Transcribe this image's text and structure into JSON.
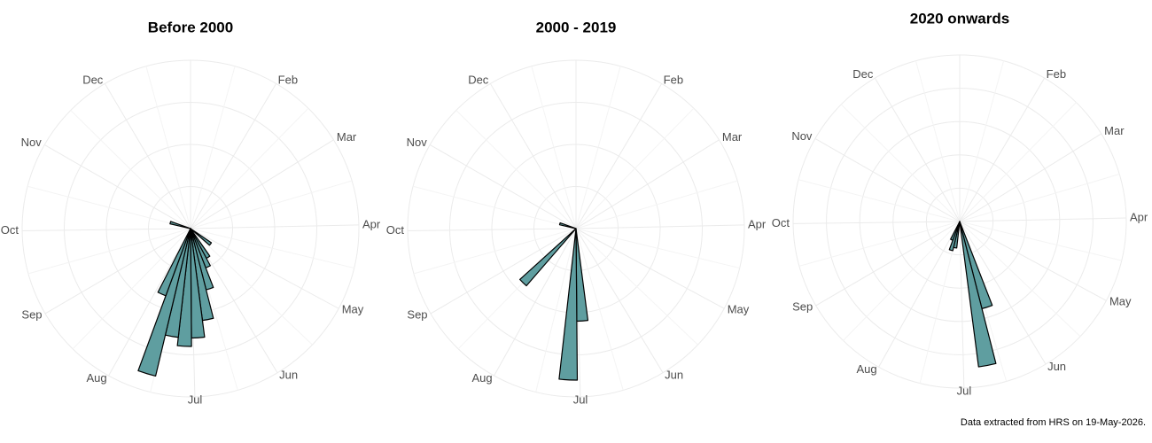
{
  "chart_data": [
    {
      "type": "polar_histogram",
      "title": "Before 2000",
      "color": "#5f9ea0",
      "bins": [
        119,
        126,
        133,
        140,
        147,
        154,
        161,
        168,
        175,
        182,
        189,
        196,
        203,
        210,
        217,
        224,
        231,
        238,
        245,
        252,
        259,
        266,
        273,
        280,
        287,
        294
      ],
      "counts": [
        0,
        6,
        0,
        0,
        8,
        10,
        15,
        22,
        26,
        28,
        26,
        36,
        17,
        0,
        0,
        0,
        0,
        0,
        0,
        0,
        0,
        0,
        0,
        0,
        5
      ],
      "xlim": [
        0,
        365
      ],
      "xticks": [
        {
          "value": 31,
          "label": "Feb"
        },
        {
          "value": 59,
          "label": "Mar"
        },
        {
          "value": 90,
          "label": "Apr"
        },
        {
          "value": 120,
          "label": "May"
        },
        {
          "value": 151,
          "label": "Jun"
        },
        {
          "value": 181,
          "label": "Jul"
        },
        {
          "value": 212,
          "label": "Aug"
        },
        {
          "value": 243,
          "label": "Sep"
        },
        {
          "value": 273,
          "label": "Oct"
        },
        {
          "value": 304,
          "label": "Nov"
        },
        {
          "value": 334,
          "label": "Dec"
        }
      ],
      "ylim": [
        0,
        40
      ],
      "yticks": [
        10,
        20,
        30,
        40
      ],
      "grid": true
    },
    {
      "type": "polar_histogram",
      "title": "2000 - 2019",
      "color": "#5f9ea0",
      "bins": [
        119,
        126,
        133,
        140,
        147,
        154,
        161,
        168,
        175,
        182,
        189,
        196,
        203,
        210,
        217,
        224,
        231,
        238,
        245,
        252,
        259,
        266,
        273,
        280,
        287,
        294
      ],
      "counts": [
        0,
        0,
        0,
        0,
        0,
        0,
        0,
        0,
        22,
        36,
        0,
        0,
        0,
        0,
        0,
        18,
        0,
        0,
        0,
        0,
        0,
        0,
        0,
        0,
        4
      ],
      "xlim": [
        0,
        365
      ],
      "xticks": [
        {
          "value": 31,
          "label": "Feb"
        },
        {
          "value": 59,
          "label": "Mar"
        },
        {
          "value": 90,
          "label": "Apr"
        },
        {
          "value": 120,
          "label": "May"
        },
        {
          "value": 151,
          "label": "Jun"
        },
        {
          "value": 181,
          "label": "Jul"
        },
        {
          "value": 212,
          "label": "Aug"
        },
        {
          "value": 243,
          "label": "Sep"
        },
        {
          "value": 273,
          "label": "Oct"
        },
        {
          "value": 304,
          "label": "Nov"
        },
        {
          "value": 334,
          "label": "Dec"
        }
      ],
      "ylim": [
        0,
        40
      ],
      "yticks": [
        10,
        20,
        30,
        40
      ],
      "grid": true
    },
    {
      "type": "polar_histogram",
      "title": "2020 onwards",
      "color": "#5f9ea0",
      "bins": [
        119,
        126,
        133,
        140,
        147,
        154,
        161,
        168,
        175,
        182,
        189,
        196,
        203,
        210
      ],
      "counts": [
        0,
        0,
        0,
        0,
        0,
        0,
        27,
        44,
        0,
        0,
        8,
        9,
        6
      ],
      "xlim": [
        0,
        365
      ],
      "xticks": [
        {
          "value": 31,
          "label": "Feb"
        },
        {
          "value": 59,
          "label": "Mar"
        },
        {
          "value": 90,
          "label": "Apr"
        },
        {
          "value": 120,
          "label": "May"
        },
        {
          "value": 151,
          "label": "Jun"
        },
        {
          "value": 181,
          "label": "Jul"
        },
        {
          "value": 212,
          "label": "Aug"
        },
        {
          "value": 243,
          "label": "Sep"
        },
        {
          "value": 273,
          "label": "Oct"
        },
        {
          "value": 304,
          "label": "Nov"
        },
        {
          "value": 334,
          "label": "Dec"
        }
      ],
      "ylim": [
        0,
        50
      ],
      "yticks": [
        10,
        20,
        30,
        40,
        50
      ],
      "grid": true
    }
  ],
  "caption": "Data extracted from HRS on 19-May-2026."
}
